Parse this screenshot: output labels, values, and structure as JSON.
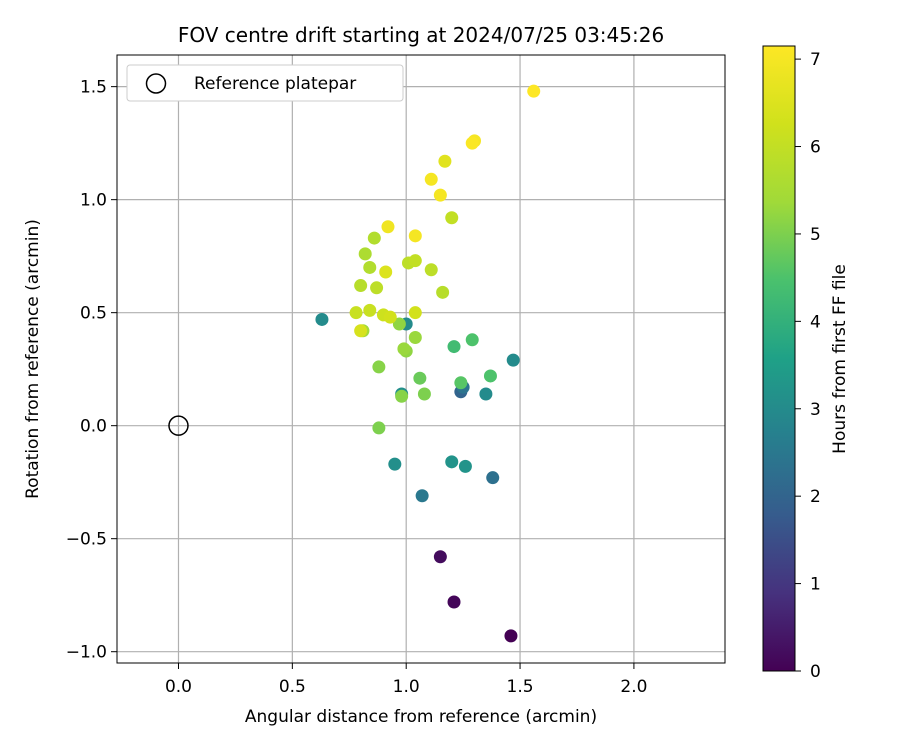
{
  "chart_data": {
    "type": "scatter",
    "title": "FOV centre drift starting at 2024/07/25 03:45:26",
    "xlabel": "Angular distance from reference (arcmin)",
    "ylabel": "Rotation from reference (arcmin)",
    "xlim": [
      -0.27,
      2.4
    ],
    "ylim": [
      -1.05,
      1.64
    ],
    "grid": true,
    "x_ticks": [
      0.0,
      0.5,
      1.0,
      1.5,
      2.0
    ],
    "x_tick_labels": [
      "0.0",
      "0.5",
      "1.0",
      "1.5",
      "2.0"
    ],
    "y_ticks": [
      1.5,
      1.0,
      0.5,
      0.0,
      -0.5,
      -1.0
    ],
    "y_tick_labels": [
      "1.5",
      "1.0",
      "0.5",
      "0.0",
      "−0.5",
      "−1.0"
    ],
    "legend": {
      "placement": "upper-left",
      "label": "Reference platepar"
    },
    "reference_point": {
      "x": 0.0,
      "y": 0.0
    },
    "colorbar": {
      "label": "Hours from first FF file",
      "range": [
        0,
        7.15
      ],
      "ticks": [
        0,
        1,
        2,
        3,
        4,
        5,
        6,
        7
      ],
      "tick_labels": [
        "0",
        "1",
        "2",
        "3",
        "4",
        "5",
        "6",
        "7"
      ],
      "colormap": "viridis"
    },
    "points": [
      {
        "x": 1.46,
        "y": -0.93,
        "hours": 0.0
      },
      {
        "x": 1.21,
        "y": -0.78,
        "hours": 0.1
      },
      {
        "x": 1.15,
        "y": -0.58,
        "hours": 0.2
      },
      {
        "x": 1.24,
        "y": 0.15,
        "hours": 2.0
      },
      {
        "x": 1.38,
        "y": -0.23,
        "hours": 2.3
      },
      {
        "x": 1.07,
        "y": -0.31,
        "hours": 2.5
      },
      {
        "x": 1.25,
        "y": 0.17,
        "hours": 2.4
      },
      {
        "x": 0.63,
        "y": 0.47,
        "hours": 3.0
      },
      {
        "x": 1.0,
        "y": 0.45,
        "hours": 3.0
      },
      {
        "x": 0.95,
        "y": -0.17,
        "hours": 3.1
      },
      {
        "x": 1.2,
        "y": -0.16,
        "hours": 3.2
      },
      {
        "x": 1.26,
        "y": -0.18,
        "hours": 3.2
      },
      {
        "x": 1.35,
        "y": 0.14,
        "hours": 3.0
      },
      {
        "x": 1.47,
        "y": 0.29,
        "hours": 3.0
      },
      {
        "x": 0.98,
        "y": 0.14,
        "hours": 3.1
      },
      {
        "x": 1.21,
        "y": 0.35,
        "hours": 4.3
      },
      {
        "x": 1.29,
        "y": 0.38,
        "hours": 4.5
      },
      {
        "x": 1.37,
        "y": 0.22,
        "hours": 4.5
      },
      {
        "x": 1.24,
        "y": 0.19,
        "hours": 4.6
      },
      {
        "x": 1.06,
        "y": 0.21,
        "hours": 4.8
      },
      {
        "x": 1.08,
        "y": 0.14,
        "hours": 5.0
      },
      {
        "x": 0.98,
        "y": 0.13,
        "hours": 5.1
      },
      {
        "x": 0.88,
        "y": -0.01,
        "hours": 5.0
      },
      {
        "x": 0.88,
        "y": 0.26,
        "hours": 5.1
      },
      {
        "x": 1.0,
        "y": 0.33,
        "hours": 5.2
      },
      {
        "x": 0.99,
        "y": 0.34,
        "hours": 5.3
      },
      {
        "x": 1.04,
        "y": 0.39,
        "hours": 5.3
      },
      {
        "x": 0.97,
        "y": 0.45,
        "hours": 5.2
      },
      {
        "x": 0.81,
        "y": 0.42,
        "hours": 5.4
      },
      {
        "x": 0.82,
        "y": 0.76,
        "hours": 5.6
      },
      {
        "x": 0.86,
        "y": 0.83,
        "hours": 5.7
      },
      {
        "x": 0.84,
        "y": 0.7,
        "hours": 5.7
      },
      {
        "x": 0.8,
        "y": 0.62,
        "hours": 5.8
      },
      {
        "x": 0.87,
        "y": 0.61,
        "hours": 5.9
      },
      {
        "x": 1.16,
        "y": 0.59,
        "hours": 5.8
      },
      {
        "x": 1.11,
        "y": 0.69,
        "hours": 5.9
      },
      {
        "x": 1.01,
        "y": 0.72,
        "hours": 5.9
      },
      {
        "x": 1.04,
        "y": 0.73,
        "hours": 6.0
      },
      {
        "x": 1.2,
        "y": 0.92,
        "hours": 6.0
      },
      {
        "x": 0.78,
        "y": 0.5,
        "hours": 6.1
      },
      {
        "x": 0.84,
        "y": 0.51,
        "hours": 6.1
      },
      {
        "x": 0.9,
        "y": 0.49,
        "hours": 6.2
      },
      {
        "x": 0.93,
        "y": 0.48,
        "hours": 6.3
      },
      {
        "x": 1.04,
        "y": 0.5,
        "hours": 6.3
      },
      {
        "x": 0.8,
        "y": 0.42,
        "hours": 6.4
      },
      {
        "x": 0.91,
        "y": 0.68,
        "hours": 6.5
      },
      {
        "x": 1.17,
        "y": 1.17,
        "hours": 6.6
      },
      {
        "x": 0.92,
        "y": 0.88,
        "hours": 6.9
      },
      {
        "x": 1.04,
        "y": 0.84,
        "hours": 7.0
      },
      {
        "x": 1.11,
        "y": 1.09,
        "hours": 7.0
      },
      {
        "x": 1.15,
        "y": 1.02,
        "hours": 7.0
      },
      {
        "x": 1.3,
        "y": 1.26,
        "hours": 7.0
      },
      {
        "x": 1.29,
        "y": 1.25,
        "hours": 7.1
      },
      {
        "x": 1.56,
        "y": 1.48,
        "hours": 7.15
      }
    ]
  }
}
